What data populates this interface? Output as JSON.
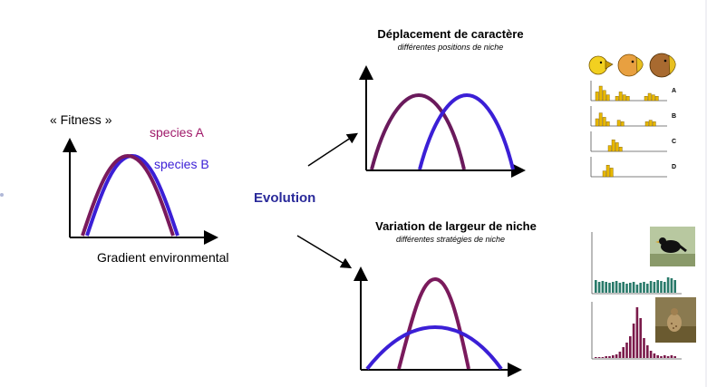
{
  "left_panel": {
    "y_label": "« Fitness »",
    "x_label": "Gradient environmental",
    "species_a": "species A",
    "species_b": "species B"
  },
  "center": {
    "evolution_label": "Evolution"
  },
  "top_panel": {
    "title": "Déplacement de caractère",
    "subtitle": "différentes positions de niche"
  },
  "bottom_panel": {
    "title": "Variation de largeur de niche",
    "subtitle": "différentes stratégies de niche"
  },
  "finch_histograms": {
    "labels": [
      "A",
      "B",
      "C",
      "D"
    ]
  },
  "colors": {
    "species_a": "#7a1a5c",
    "species_b": "#3b1fd6",
    "finch_bar": "#e8b800",
    "teal_bar": "#2a7a6a",
    "maroon_bar": "#7a1a4a"
  },
  "icons": [
    "finch-yellow-icon",
    "finch-orange-icon",
    "finch-brown-icon",
    "blackbird-photo-icon",
    "thrush-photo-icon"
  ]
}
